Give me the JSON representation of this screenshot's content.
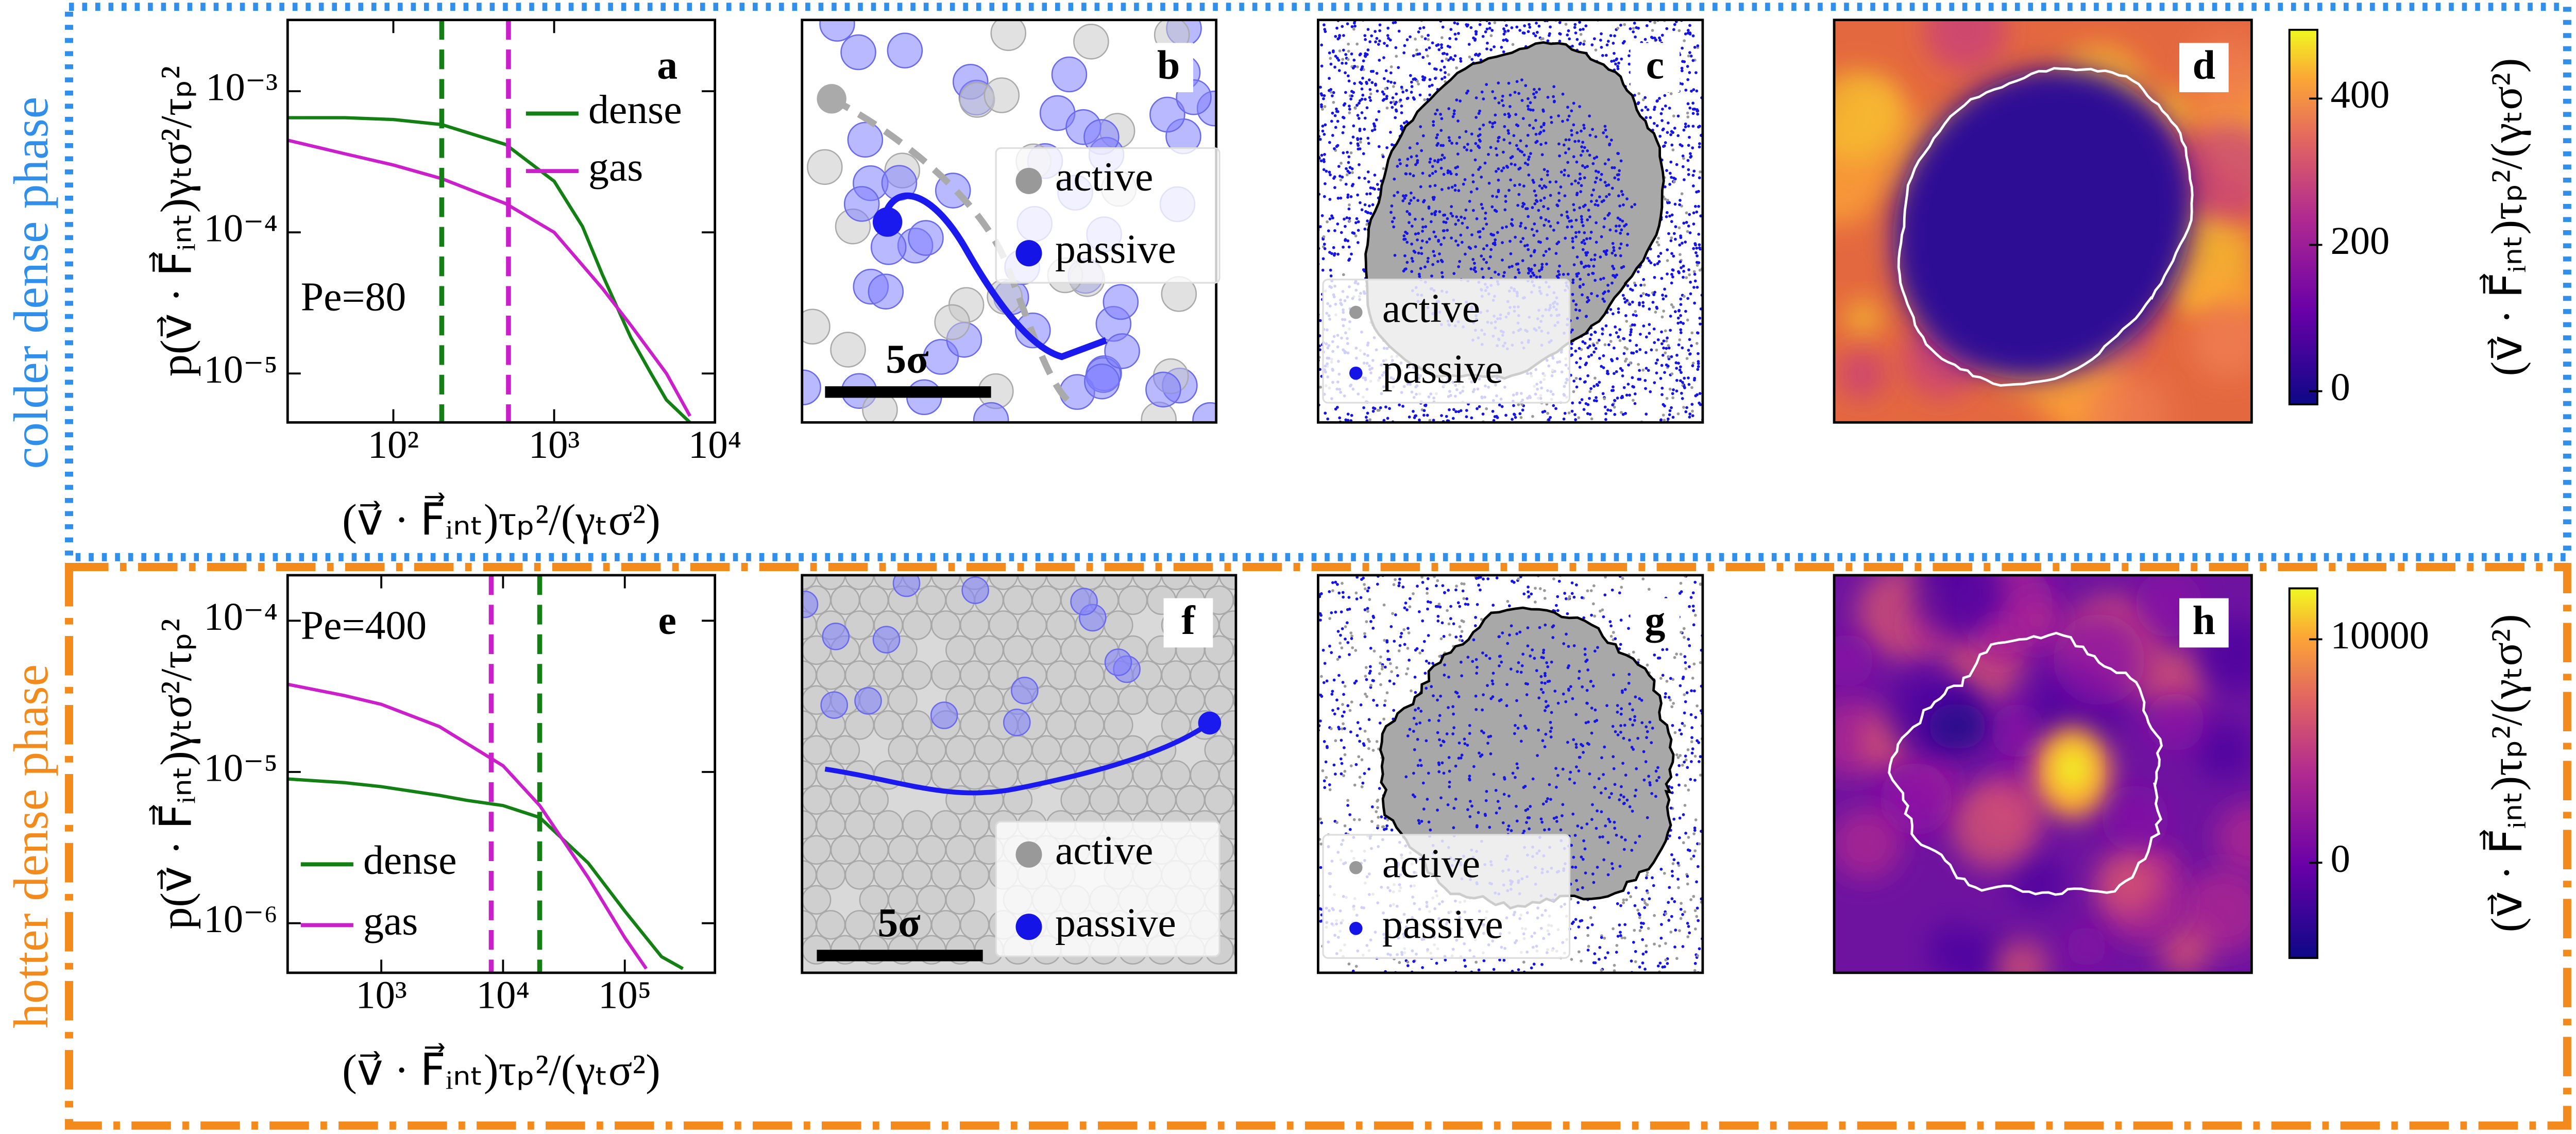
{
  "row_labels": [
    "colder dense phase",
    "hotter dense phase"
  ],
  "chart_data": [
    {
      "type": "line",
      "panel_label": "a",
      "annotation": "Pe=80",
      "xlabel": "(v⃗ · F⃗ᵢₙₜ)τₚ²/(γₜσ²)",
      "ylabel": "p(v⃗ · F⃗ᵢₙₜ)γₜσ²/τₚ²",
      "xlog": true,
      "ylog": true,
      "xlim": [
        22,
        10000
      ],
      "ylim": [
        4.5e-06,
        0.0032
      ],
      "xticks": [
        {
          "value": 100,
          "label": "10²"
        },
        {
          "value": 1000,
          "label": "10³"
        },
        {
          "value": 10000,
          "label": "10⁴"
        }
      ],
      "yticks": [
        {
          "value": 1e-05,
          "label": "10⁻⁵"
        },
        {
          "value": 0.0001,
          "label": "10⁻⁴"
        },
        {
          "value": 0.001,
          "label": "10⁻³"
        }
      ],
      "legend": "upper right",
      "series": [
        {
          "name": "dense",
          "color": "#138013",
          "x": [
            22,
            50,
            100,
            200,
            500,
            1000,
            1500,
            2000,
            3000,
            4000,
            5000,
            7000
          ],
          "values": [
            0.00065,
            0.00065,
            0.00063,
            0.00058,
            0.00042,
            0.00023,
            0.00011,
            5e-05,
            1.8e-05,
            1e-05,
            6.5e-06,
            4.5e-06
          ]
        },
        {
          "name": "gas",
          "color": "#cc1fcc",
          "x": [
            22,
            50,
            100,
            200,
            500,
            1000,
            2000,
            3000,
            5000,
            7000
          ],
          "values": [
            0.00045,
            0.00036,
            0.0003,
            0.00024,
            0.00016,
            0.0001,
            4e-05,
            2.2e-05,
            1e-05,
            5e-06
          ]
        }
      ],
      "vlines": [
        {
          "value": 200,
          "color": "#138013"
        },
        {
          "value": 520,
          "color": "#cc1fcc"
        }
      ]
    },
    {
      "type": "snapshot",
      "panel_label": "b",
      "legend_labels": [
        "active",
        "passive"
      ],
      "scale_bar": "5σ"
    },
    {
      "type": "snapshot",
      "panel_label": "c",
      "legend_labels": [
        "active",
        "passive"
      ]
    },
    {
      "type": "heatmap",
      "panel_label": "d",
      "colorbar": {
        "clim": [
          -18,
          494
        ],
        "ticks": [
          0,
          200,
          400
        ],
        "label": "(v⃗ · F⃗ᵢₙₜ)τₚ²/(γₜσ²)"
      }
    },
    {
      "type": "line",
      "panel_label": "e",
      "annotation": "Pe=400",
      "xlabel": "(v⃗ · F⃗ᵢₙₜ)τₚ²/(γₜσ²)",
      "ylabel": "p(v⃗ · F⃗ᵢₙₜ)γₜσ²/τₚ²",
      "xlog": true,
      "ylog": true,
      "xlim": [
        170,
        550000
      ],
      "ylim": [
        4.7e-07,
        0.0002
      ],
      "xticks": [
        {
          "value": 1000,
          "label": "10³"
        },
        {
          "value": 10000,
          "label": "10⁴"
        },
        {
          "value": 100000,
          "label": "10⁵"
        }
      ],
      "yticks": [
        {
          "value": 1e-06,
          "label": "10⁻⁶"
        },
        {
          "value": 1e-05,
          "label": "10⁻⁵"
        },
        {
          "value": 0.0001,
          "label": "10⁻⁴"
        }
      ],
      "legend": "lower left",
      "series": [
        {
          "name": "dense",
          "color": "#138013",
          "x": [
            170,
            500,
            1000,
            3000,
            5000,
            10000,
            20000,
            50000,
            100000,
            200000,
            300000
          ],
          "values": [
            9e-06,
            8.5e-06,
            8e-06,
            7e-06,
            6.5e-06,
            6e-06,
            5e-06,
            2.5e-06,
            1.2e-06,
            6e-07,
            5e-07
          ]
        },
        {
          "name": "gas",
          "color": "#cc1fcc",
          "x": [
            170,
            500,
            1000,
            3000,
            10000,
            20000,
            50000,
            100000,
            150000
          ],
          "values": [
            3.8e-05,
            3.2e-05,
            2.8e-05,
            2e-05,
            1.1e-05,
            6e-06,
            2e-06,
            8e-07,
            5e-07
          ]
        }
      ],
      "vlines": [
        {
          "value": 8000,
          "color": "#cc1fcc"
        },
        {
          "value": 20000,
          "color": "#138013"
        }
      ]
    },
    {
      "type": "snapshot",
      "panel_label": "f",
      "legend_labels": [
        "active",
        "passive"
      ],
      "scale_bar": "5σ"
    },
    {
      "type": "snapshot",
      "panel_label": "g",
      "legend_labels": [
        "active",
        "passive"
      ]
    },
    {
      "type": "heatmap",
      "panel_label": "h",
      "colorbar": {
        "clim": [
          -4265,
          12280
        ],
        "ticks": [
          0,
          10000
        ],
        "label": "(v⃗ · F⃗ᵢₙₜ)τₚ²/(γₜσ²)"
      }
    }
  ]
}
